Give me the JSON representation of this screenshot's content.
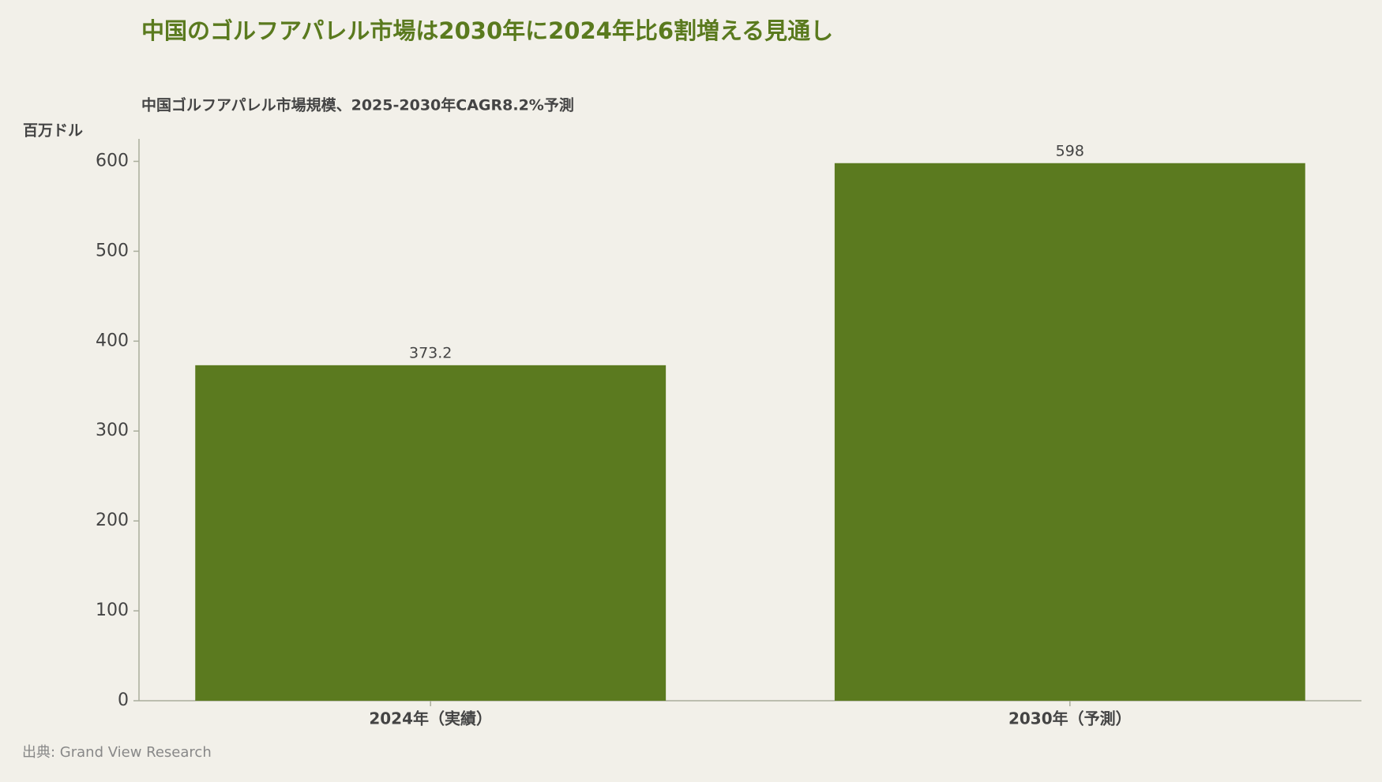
{
  "chart_data": {
    "type": "bar",
    "title": "中国のゴルフアパレル市場は2030年に2024年比6割増える見通し",
    "subtitle": "中国ゴルフアパレル市場規模、2025-2030年CAGR8.2%予測",
    "y_label": "百万ドル",
    "source": "出典: Grand View Research",
    "categories": [
      "2024年（実績）",
      "2030年（予測）"
    ],
    "values": [
      373.2,
      598
    ],
    "color": "#5b7a1f",
    "ylim": [
      0,
      625
    ],
    "yticks": [
      0,
      100,
      200,
      300,
      400,
      500,
      600
    ],
    "grid": false
  }
}
